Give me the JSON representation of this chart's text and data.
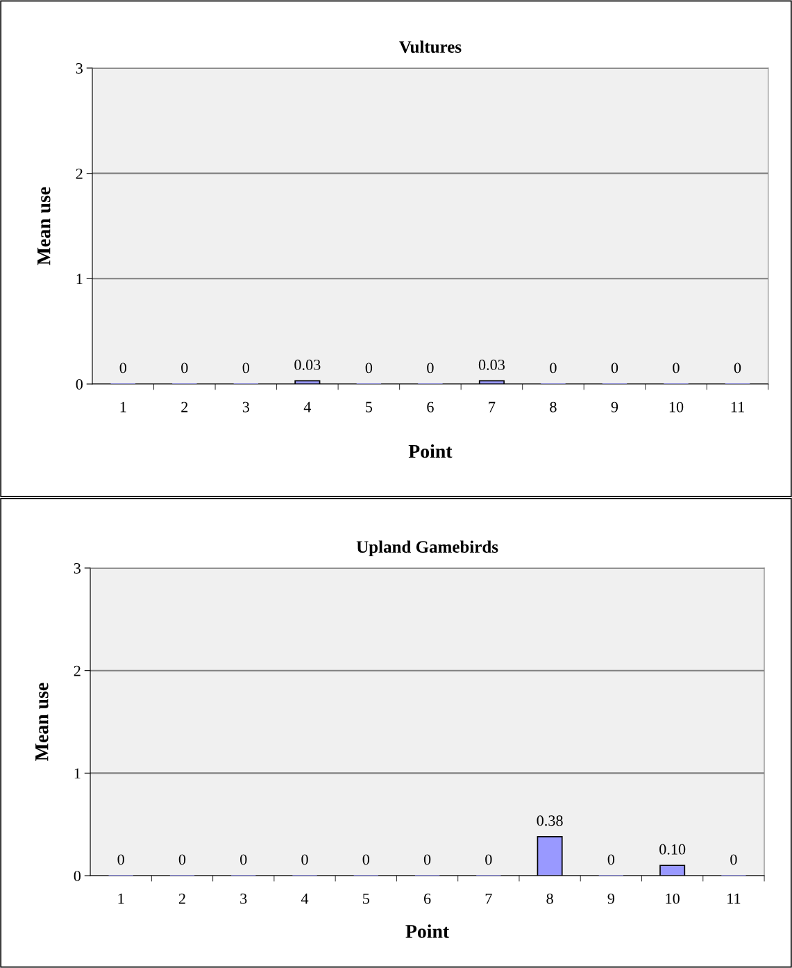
{
  "chart_data": [
    {
      "type": "bar",
      "title": "Vultures",
      "xlabel": "Point",
      "ylabel": "Mean use",
      "categories": [
        "1",
        "2",
        "3",
        "4",
        "5",
        "6",
        "7",
        "8",
        "9",
        "10",
        "11"
      ],
      "series": [
        {
          "color": "#9999ff",
          "values": [
            0,
            0,
            0,
            0.03,
            0,
            0,
            0.03,
            0,
            0,
            0,
            0
          ],
          "value_labels": [
            "0",
            "0",
            "0",
            "0.03",
            "0",
            "0",
            "0.03",
            "0",
            "0",
            "0",
            "0"
          ]
        }
      ],
      "ylim": [
        0,
        3
      ],
      "yticks": [
        0,
        1,
        2,
        3
      ],
      "grid": "y"
    },
    {
      "type": "bar",
      "title": "Upland Gamebirds",
      "xlabel": "Point",
      "ylabel": "Mean use",
      "categories": [
        "1",
        "2",
        "3",
        "4",
        "5",
        "6",
        "7",
        "8",
        "9",
        "10",
        "11"
      ],
      "series": [
        {
          "color": "#9999ff",
          "values": [
            0,
            0,
            0,
            0,
            0,
            0,
            0,
            0.38,
            0,
            0.1,
            0
          ],
          "value_labels": [
            "0",
            "0",
            "0",
            "0",
            "0",
            "0",
            "0",
            "0.38",
            "0",
            "0.10",
            "0"
          ]
        }
      ],
      "ylim": [
        0,
        3
      ],
      "yticks": [
        0,
        1,
        2,
        3
      ],
      "grid": "y"
    }
  ]
}
